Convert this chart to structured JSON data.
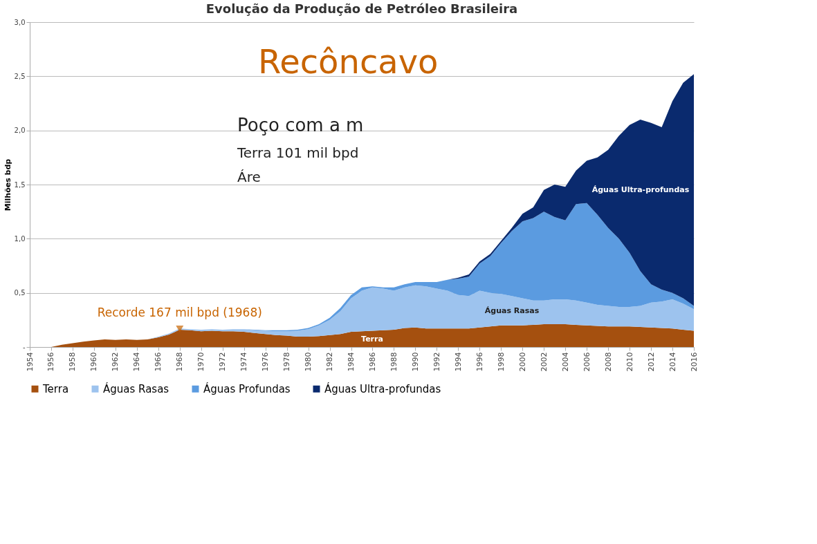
{
  "chart_data": {
    "type": "area",
    "stacked": true,
    "title": "Evolução da Produção de Petróleo Brasileira",
    "ylabel": "Milhões bdp",
    "x": [
      1954,
      1955,
      1956,
      1957,
      1958,
      1959,
      1960,
      1961,
      1962,
      1963,
      1964,
      1965,
      1966,
      1967,
      1968,
      1969,
      1970,
      1971,
      1972,
      1973,
      1974,
      1975,
      1976,
      1977,
      1978,
      1979,
      1980,
      1981,
      1982,
      1983,
      1984,
      1985,
      1986,
      1987,
      1988,
      1989,
      1990,
      1991,
      1992,
      1993,
      1994,
      1995,
      1996,
      1997,
      1998,
      1999,
      2000,
      2001,
      2002,
      2003,
      2004,
      2005,
      2006,
      2007,
      2008,
      2009,
      2010,
      2011,
      2012,
      2013,
      2014,
      2015,
      2016
    ],
    "series": [
      {
        "name": "Terra",
        "color": "#a5500f",
        "values": [
          0,
          0,
          0,
          0.02,
          0.035,
          0.05,
          0.06,
          0.07,
          0.065,
          0.07,
          0.065,
          0.07,
          0.09,
          0.115,
          0.16,
          0.155,
          0.145,
          0.15,
          0.145,
          0.145,
          0.14,
          0.13,
          0.12,
          0.11,
          0.105,
          0.095,
          0.095,
          0.1,
          0.11,
          0.12,
          0.14,
          0.145,
          0.15,
          0.155,
          0.16,
          0.175,
          0.18,
          0.17,
          0.17,
          0.17,
          0.17,
          0.17,
          0.18,
          0.19,
          0.2,
          0.2,
          0.2,
          0.205,
          0.21,
          0.21,
          0.21,
          0.205,
          0.2,
          0.195,
          0.19,
          0.19,
          0.19,
          0.185,
          0.18,
          0.175,
          0.17,
          0.16,
          0.15
        ]
      },
      {
        "name": "Águas Rasas",
        "color": "#9dc3ee",
        "values": [
          0,
          0,
          0,
          0,
          0,
          0,
          0,
          0,
          0,
          0,
          0,
          0,
          0.005,
          0.01,
          0.01,
          0.01,
          0.015,
          0.015,
          0.015,
          0.02,
          0.025,
          0.025,
          0.03,
          0.035,
          0.04,
          0.055,
          0.07,
          0.1,
          0.14,
          0.21,
          0.31,
          0.375,
          0.4,
          0.385,
          0.36,
          0.375,
          0.39,
          0.39,
          0.37,
          0.35,
          0.31,
          0.3,
          0.34,
          0.31,
          0.29,
          0.27,
          0.25,
          0.225,
          0.22,
          0.23,
          0.23,
          0.225,
          0.21,
          0.195,
          0.19,
          0.18,
          0.18,
          0.195,
          0.23,
          0.245,
          0.27,
          0.24,
          0.2
        ]
      },
      {
        "name": "Águas Profundas",
        "color": "#5b9be0",
        "values": [
          0,
          0,
          0,
          0,
          0,
          0,
          0,
          0,
          0,
          0,
          0,
          0,
          0,
          0,
          0,
          0,
          0,
          0,
          0,
          0,
          0,
          0.005,
          0.005,
          0.01,
          0.01,
          0.01,
          0.01,
          0.01,
          0.02,
          0.03,
          0.03,
          0.03,
          0.01,
          0.01,
          0.03,
          0.03,
          0.03,
          0.04,
          0.06,
          0.1,
          0.15,
          0.18,
          0.25,
          0.34,
          0.47,
          0.6,
          0.71,
          0.76,
          0.82,
          0.76,
          0.73,
          0.89,
          0.92,
          0.83,
          0.72,
          0.63,
          0.5,
          0.32,
          0.17,
          0.11,
          0.06,
          0.05,
          0.03
        ]
      },
      {
        "name": "Águas Ultra-profundas",
        "color": "#0a2a6e",
        "values": [
          0,
          0,
          0,
          0,
          0,
          0,
          0,
          0,
          0,
          0,
          0,
          0,
          0,
          0,
          0,
          0,
          0,
          0,
          0,
          0,
          0,
          0,
          0,
          0,
          0,
          0,
          0,
          0,
          0,
          0,
          0,
          0,
          0,
          0,
          0,
          0,
          0,
          0,
          0,
          0,
          0.01,
          0.02,
          0.02,
          0.02,
          0.02,
          0.03,
          0.07,
          0.1,
          0.2,
          0.3,
          0.31,
          0.31,
          0.39,
          0.53,
          0.72,
          0.95,
          1.18,
          1.4,
          1.49,
          1.5,
          1.77,
          1.99,
          2.14
        ]
      }
    ],
    "xlim": [
      1954,
      2016
    ],
    "xticks": [
      1954,
      1956,
      1958,
      1960,
      1962,
      1964,
      1966,
      1968,
      1970,
      1972,
      1974,
      1976,
      1978,
      1980,
      1982,
      1984,
      1986,
      1988,
      1990,
      1992,
      1994,
      1996,
      1998,
      2000,
      2002,
      2004,
      2006,
      2008,
      2010,
      2012,
      2014,
      2016
    ],
    "ylim": [
      0,
      3
    ],
    "yticks": [
      {
        "value": 0,
        "label": "-"
      },
      {
        "value": 0.5,
        "label": "0,5"
      },
      {
        "value": 1,
        "label": "1,0"
      },
      {
        "value": 1.5,
        "label": "1,5"
      },
      {
        "value": 2,
        "label": "2,0"
      },
      {
        "value": 2.5,
        "label": "2,5"
      },
      {
        "value": 3,
        "label": "3,0"
      }
    ],
    "grid": "y",
    "legend": "bottom",
    "annotations": [
      "Recôncavo",
      {
        "text": "Recorde 167 mil bpd (1968)",
        "x": 1968,
        "y": 0.167
      },
      "Terra",
      "Águas Rasas",
      "Águas Ultra-profundas",
      "Poço com a m",
      "Terra 101 mil bpd",
      "Áre"
    ]
  }
}
